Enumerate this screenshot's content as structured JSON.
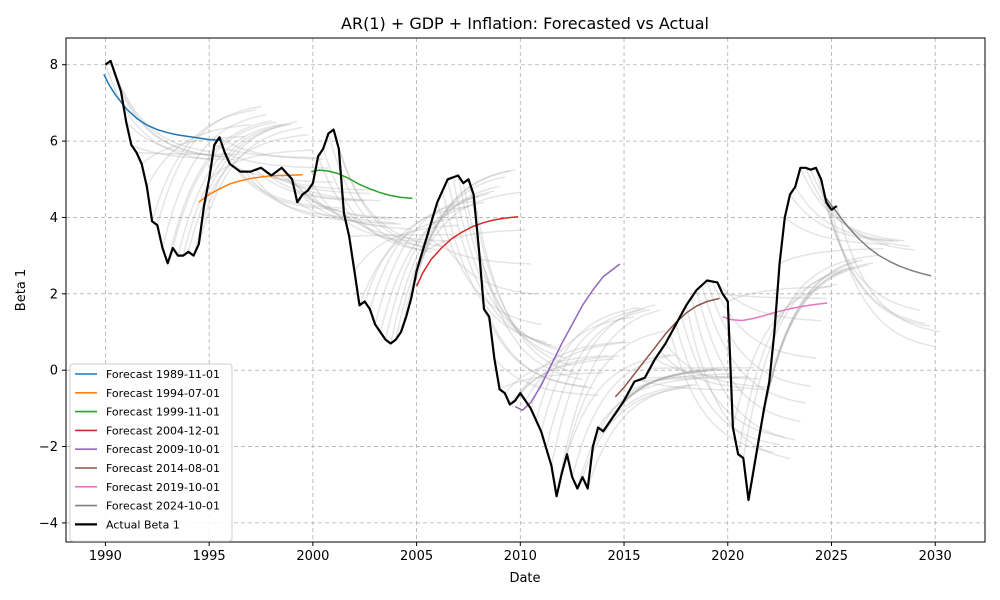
{
  "chart_data": {
    "type": "line",
    "title": "AR(1) + GDP + Inflation: Forecasted vs Actual",
    "xlabel": "Date",
    "ylabel": "Beta 1",
    "xlim": [
      1988.1,
      2032.4
    ],
    "ylim": [
      -4.5,
      8.7
    ],
    "x_ticks": [
      1990,
      1995,
      2000,
      2005,
      2010,
      2015,
      2020,
      2025,
      2030
    ],
    "y_ticks": [
      -4,
      -2,
      0,
      2,
      4,
      6,
      8
    ],
    "x_tick_labels": [
      "1990",
      "1995",
      "2000",
      "2005",
      "2010",
      "2015",
      "2020",
      "2025",
      "2030"
    ],
    "y_tick_labels": [
      "−4",
      "−2",
      "0",
      "2",
      "4",
      "6",
      "8"
    ],
    "grid": true,
    "legend_position": "lower-left",
    "background_forecast_color": "#a0a0a0",
    "series": [
      {
        "name": "Forecast 1989-11-01",
        "color": "#1f77b4",
        "x": [
          1989.92,
          1990.2,
          1990.5,
          1991.0,
          1991.5,
          1992.0,
          1992.5,
          1993.0,
          1993.5,
          1994.0,
          1994.5,
          1995.0,
          1995.5
        ],
        "y": [
          7.75,
          7.45,
          7.2,
          6.85,
          6.6,
          6.42,
          6.3,
          6.22,
          6.16,
          6.12,
          6.08,
          6.04,
          6.02
        ]
      },
      {
        "name": "Forecast 1994-07-01",
        "color": "#ff7f0e",
        "x": [
          1994.5,
          1995.0,
          1995.5,
          1996.0,
          1996.5,
          1997.0,
          1997.5,
          1998.0,
          1998.5,
          1999.0,
          1999.5
        ],
        "y": [
          4.4,
          4.6,
          4.75,
          4.88,
          4.96,
          5.02,
          5.06,
          5.09,
          5.1,
          5.11,
          5.12
        ]
      },
      {
        "name": "Forecast 1999-11-01",
        "color": "#2ca02c",
        "x": [
          1999.92,
          2000.3,
          2000.7,
          2001.2,
          2001.7,
          2002.2,
          2002.7,
          2003.2,
          2003.7,
          2004.2,
          2004.8
        ],
        "y": [
          5.2,
          5.24,
          5.22,
          5.15,
          5.03,
          4.88,
          4.76,
          4.66,
          4.58,
          4.53,
          4.5
        ]
      },
      {
        "name": "Forecast 2004-12-01",
        "color": "#d62728",
        "x": [
          2005.0,
          2005.3,
          2005.7,
          2006.2,
          2006.7,
          2007.2,
          2007.7,
          2008.2,
          2008.7,
          2009.2,
          2009.9
        ],
        "y": [
          2.2,
          2.55,
          2.9,
          3.2,
          3.45,
          3.62,
          3.76,
          3.86,
          3.93,
          3.98,
          4.02
        ]
      },
      {
        "name": "Forecast 2009-10-01",
        "color": "#9467bd",
        "x": [
          2009.75,
          2010.1,
          2010.5,
          2011.0,
          2011.5,
          2012.0,
          2012.5,
          2013.0,
          2013.5,
          2014.0,
          2014.8
        ],
        "y": [
          -0.95,
          -1.05,
          -0.85,
          -0.4,
          0.15,
          0.7,
          1.2,
          1.7,
          2.1,
          2.45,
          2.78
        ]
      },
      {
        "name": "Forecast 2014-08-01",
        "color": "#8c564b",
        "x": [
          2014.58,
          2015.0,
          2015.5,
          2016.0,
          2016.5,
          2017.0,
          2017.5,
          2018.0,
          2018.5,
          2019.0,
          2019.6
        ],
        "y": [
          -0.7,
          -0.45,
          -0.1,
          0.25,
          0.6,
          0.95,
          1.25,
          1.5,
          1.68,
          1.8,
          1.88
        ]
      },
      {
        "name": "Forecast 2019-10-01",
        "color": "#e377c2",
        "x": [
          2019.75,
          2020.2,
          2020.7,
          2021.2,
          2021.7,
          2022.2,
          2022.7,
          2023.2,
          2023.7,
          2024.2,
          2024.8
        ],
        "y": [
          1.4,
          1.32,
          1.3,
          1.35,
          1.42,
          1.5,
          1.57,
          1.63,
          1.68,
          1.72,
          1.76
        ]
      },
      {
        "name": "Forecast 2024-10-01",
        "color": "#7f7f7f",
        "x": [
          2024.75,
          2025.3,
          2025.8,
          2026.3,
          2026.8,
          2027.3,
          2027.8,
          2028.3,
          2028.8,
          2029.3,
          2029.8
        ],
        "y": [
          4.5,
          4.1,
          3.75,
          3.45,
          3.2,
          3.0,
          2.85,
          2.72,
          2.62,
          2.54,
          2.47
        ]
      },
      {
        "name": "Actual Beta 1",
        "color": "#000000",
        "x": [
          1990.0,
          1990.25,
          1990.5,
          1990.75,
          1991.0,
          1991.25,
          1991.5,
          1991.75,
          1992.0,
          1992.25,
          1992.5,
          1992.75,
          1993.0,
          1993.25,
          1993.5,
          1993.75,
          1994.0,
          1994.25,
          1994.5,
          1994.75,
          1995.0,
          1995.25,
          1995.5,
          1995.75,
          1996.0,
          1996.5,
          1997.0,
          1997.5,
          1998.0,
          1998.5,
          1999.0,
          1999.25,
          1999.5,
          1999.75,
          2000.0,
          2000.25,
          2000.5,
          2000.75,
          2001.0,
          2001.25,
          2001.5,
          2001.75,
          2002.0,
          2002.25,
          2002.5,
          2002.75,
          2003.0,
          2003.25,
          2003.5,
          2003.75,
          2004.0,
          2004.25,
          2004.5,
          2004.75,
          2005.0,
          2005.5,
          2006.0,
          2006.5,
          2007.0,
          2007.25,
          2007.5,
          2007.75,
          2008.0,
          2008.25,
          2008.5,
          2008.75,
          2009.0,
          2009.25,
          2009.5,
          2009.75,
          2010.0,
          2010.5,
          2011.0,
          2011.5,
          2011.75,
          2012.0,
          2012.25,
          2012.5,
          2012.75,
          2013.0,
          2013.25,
          2013.5,
          2013.75,
          2014.0,
          2014.5,
          2015.0,
          2015.5,
          2016.0,
          2016.5,
          2017.0,
          2017.5,
          2018.0,
          2018.5,
          2019.0,
          2019.5,
          2019.75,
          2020.0,
          2020.25,
          2020.5,
          2020.75,
          2021.0,
          2021.25,
          2021.5,
          2021.75,
          2022.0,
          2022.25,
          2022.5,
          2022.75,
          2023.0,
          2023.25,
          2023.5,
          2023.75,
          2024.0,
          2024.25,
          2024.5,
          2024.75,
          2025.0,
          2025.25
        ],
        "y": [
          8.0,
          8.1,
          7.7,
          7.3,
          6.5,
          5.9,
          5.7,
          5.4,
          4.8,
          3.9,
          3.8,
          3.2,
          2.8,
          3.2,
          3.0,
          3.0,
          3.1,
          3.0,
          3.3,
          4.3,
          5.0,
          5.9,
          6.1,
          5.7,
          5.4,
          5.2,
          5.2,
          5.3,
          5.1,
          5.3,
          5.0,
          4.4,
          4.6,
          4.7,
          4.9,
          5.6,
          5.8,
          6.2,
          6.3,
          5.8,
          4.1,
          3.5,
          2.6,
          1.7,
          1.8,
          1.6,
          1.2,
          1.0,
          0.8,
          0.7,
          0.8,
          1.0,
          1.4,
          1.9,
          2.6,
          3.5,
          4.4,
          5.0,
          5.1,
          4.9,
          5.0,
          4.6,
          3.2,
          1.6,
          1.4,
          0.3,
          -0.5,
          -0.6,
          -0.9,
          -0.8,
          -0.6,
          -1.0,
          -1.6,
          -2.5,
          -3.3,
          -2.7,
          -2.2,
          -2.8,
          -3.1,
          -2.8,
          -3.1,
          -2.0,
          -1.5,
          -1.6,
          -1.2,
          -0.8,
          -0.3,
          -0.2,
          0.3,
          0.7,
          1.2,
          1.7,
          2.1,
          2.35,
          2.3,
          2.0,
          1.8,
          -1.5,
          -2.2,
          -2.3,
          -3.4,
          -2.6,
          -1.8,
          -1.0,
          -0.3,
          1.0,
          2.8,
          4.0,
          4.6,
          4.8,
          5.3,
          5.3,
          5.25,
          5.3,
          5.0,
          4.4,
          4.2,
          4.3
        ]
      }
    ]
  }
}
